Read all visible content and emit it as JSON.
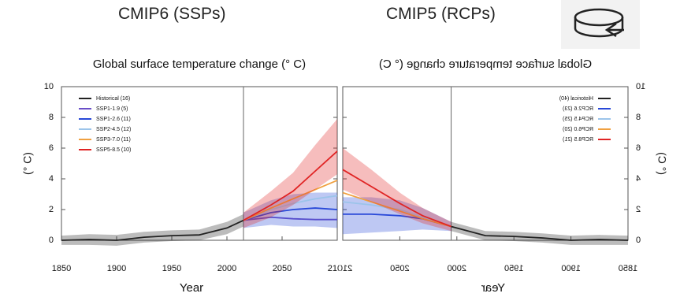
{
  "chart_data": [
    {
      "type": "line",
      "heading": "CMIP6 (SSPs)",
      "title": "Global surface temperature change (° C)",
      "x_label": "Year",
      "y_label": "(° C)",
      "mirrored": false,
      "xlim": [
        1850,
        2100
      ],
      "xticks": [
        1850,
        1900,
        1950,
        2000,
        2050,
        2100
      ],
      "ylim": [
        0,
        10
      ],
      "yticks": [
        0,
        2,
        4,
        6,
        8,
        10
      ],
      "divider_x": 2015,
      "series": [
        {
          "name": "Historical (16)",
          "color": "#222222",
          "x": [
            1850,
            1875,
            1900,
            1925,
            1950,
            1975,
            2000,
            2015
          ],
          "values": [
            0,
            0.05,
            0,
            0.2,
            0.3,
            0.35,
            0.8,
            1.3
          ],
          "lower": [
            -0.3,
            -0.3,
            -0.35,
            -0.15,
            -0.05,
            0,
            0.4,
            0.9
          ],
          "upper": [
            0.3,
            0.4,
            0.35,
            0.55,
            0.65,
            0.7,
            1.2,
            1.7
          ]
        },
        {
          "name": "SSP1-1.9 (5)",
          "color": "#6a4fc8",
          "x": [
            2015,
            2040,
            2060,
            2080,
            2100
          ],
          "values": [
            1.3,
            1.5,
            1.4,
            1.35,
            1.35
          ]
        },
        {
          "name": "SSP1-2.6 (11)",
          "color": "#2848d8",
          "x": [
            2015,
            2040,
            2060,
            2080,
            2100
          ],
          "values": [
            1.3,
            1.8,
            2.0,
            2.1,
            2.0
          ],
          "lower": [
            0.8,
            1.0,
            0.9,
            0.9,
            0.8
          ],
          "upper": [
            1.8,
            2.6,
            3.0,
            3.1,
            3.1
          ]
        },
        {
          "name": "SSP2-4.5 (12)",
          "color": "#9cc4ea",
          "x": [
            2015,
            2040,
            2060,
            2080,
            2100
          ],
          "values": [
            1.3,
            2.0,
            2.4,
            2.7,
            2.9
          ]
        },
        {
          "name": "SSP3-7.0 (11)",
          "color": "#f0a040",
          "x": [
            2015,
            2040,
            2060,
            2080,
            2100
          ],
          "values": [
            1.3,
            2.1,
            2.7,
            3.3,
            3.9
          ]
        },
        {
          "name": "SSP5-8.5 (10)",
          "color": "#e02424",
          "x": [
            2015,
            2040,
            2060,
            2080,
            2100
          ],
          "values": [
            1.3,
            2.3,
            3.2,
            4.5,
            5.8
          ],
          "lower": [
            0.8,
            1.5,
            2.3,
            3.3,
            4.3
          ],
          "upper": [
            1.8,
            3.2,
            4.4,
            6.2,
            7.9
          ]
        }
      ]
    },
    {
      "type": "line",
      "heading": "CMIP5 (RCPs)",
      "title": "Global surface temperature change (° C)",
      "x_label": "Year",
      "y_label": "(° C)",
      "mirrored": true,
      "xlim": [
        1850,
        2100
      ],
      "xticks": [
        1850,
        1900,
        1950,
        2000,
        2050,
        2100
      ],
      "ylim": [
        0,
        10
      ],
      "yticks": [
        0,
        2,
        4,
        6,
        8,
        10
      ],
      "divider_x": 2005,
      "series": [
        {
          "name": "Historical (40)",
          "color": "#222222",
          "x": [
            1850,
            1875,
            1900,
            1925,
            1950,
            1975,
            2005
          ],
          "values": [
            0,
            0.05,
            0,
            0.15,
            0.25,
            0.3,
            0.9
          ],
          "lower": [
            -0.3,
            -0.3,
            -0.3,
            -0.15,
            -0.05,
            0,
            0.6
          ],
          "upper": [
            0.3,
            0.35,
            0.3,
            0.45,
            0.55,
            0.6,
            1.2
          ]
        },
        {
          "name": "RCP2.6 (23)",
          "color": "#2848d8",
          "x": [
            2005,
            2030,
            2050,
            2075,
            2100
          ],
          "values": [
            0.9,
            1.4,
            1.6,
            1.7,
            1.7
          ],
          "lower": [
            0.6,
            0.7,
            0.6,
            0.5,
            0.4
          ],
          "upper": [
            1.2,
            2.1,
            2.6,
            2.8,
            2.8
          ]
        },
        {
          "name": "RCP4.5 (25)",
          "color": "#9cc4ea",
          "x": [
            2005,
            2030,
            2050,
            2075,
            2100
          ],
          "values": [
            0.9,
            1.5,
            2.0,
            2.3,
            2.5
          ]
        },
        {
          "name": "RCP6.0 (20)",
          "color": "#f0a040",
          "x": [
            2005,
            2030,
            2050,
            2075,
            2100
          ],
          "values": [
            0.9,
            1.4,
            1.9,
            2.5,
            3.1
          ]
        },
        {
          "name": "RCP8.5 (21)",
          "color": "#e02424",
          "x": [
            2005,
            2030,
            2050,
            2075,
            2100
          ],
          "values": [
            0.9,
            1.6,
            2.4,
            3.5,
            4.6
          ],
          "lower": [
            0.6,
            1.1,
            1.7,
            2.5,
            3.3
          ],
          "upper": [
            1.2,
            2.1,
            3.1,
            4.6,
            6.0
          ]
        }
      ]
    }
  ]
}
